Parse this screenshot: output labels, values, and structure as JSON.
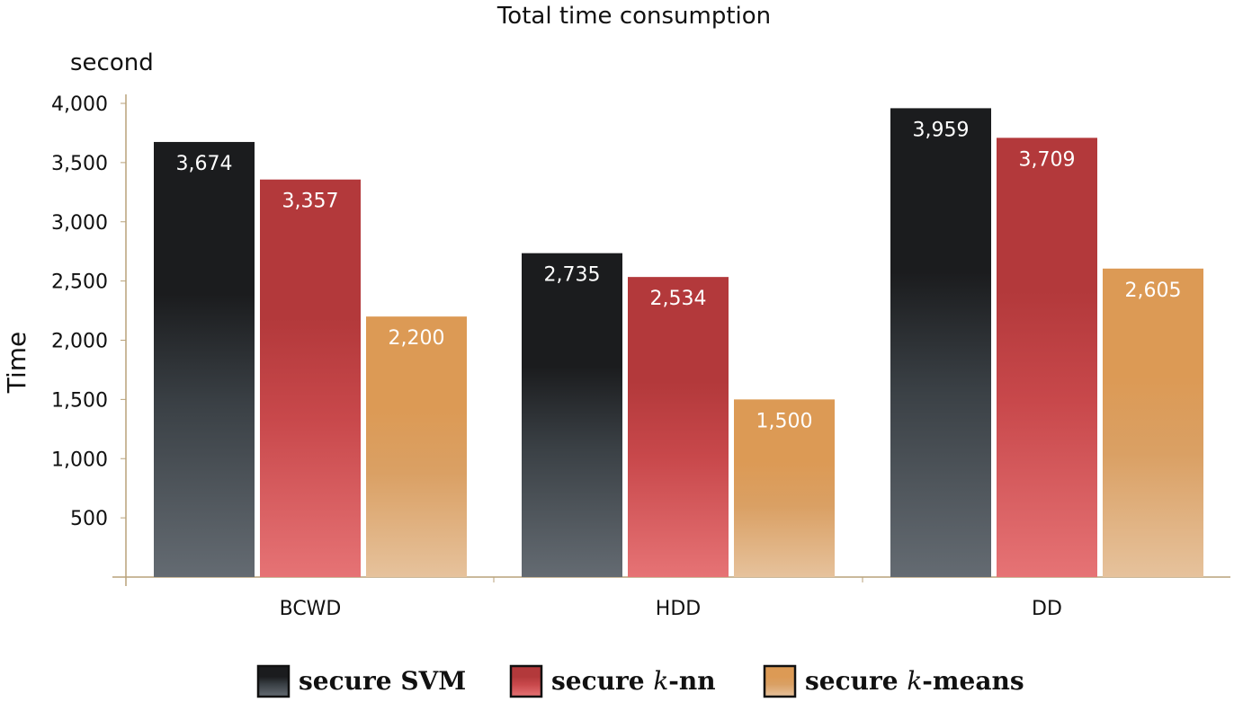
{
  "chart_data": {
    "type": "bar",
    "title": "Total time consumption",
    "unit_label": "second",
    "ylabel": "Time",
    "xlabel": "",
    "categories": [
      "BCWD",
      "HDD",
      "DD"
    ],
    "ylim": [
      0,
      4000
    ],
    "yticks": [
      500,
      1000,
      1500,
      2000,
      2500,
      3000,
      3500,
      4000
    ],
    "ytick_labels": [
      "500",
      "1,000",
      "1,500",
      "2,000",
      "2,500",
      "3,000",
      "3,500",
      "4,000"
    ],
    "grid": false,
    "legend_position": "bottom",
    "series": [
      {
        "name_prefix": "secure ",
        "name_main": "SVM",
        "name_main_italic": false,
        "name_suffix": "",
        "values": [
          3674,
          2735,
          3959
        ],
        "labels": [
          "3,674",
          "2,735",
          "3,959"
        ],
        "colors": {
          "top": "#1b1c1e",
          "mid": "#3a4045",
          "bottom": "#646b72"
        }
      },
      {
        "name_prefix": "secure ",
        "name_main": "k",
        "name_main_italic": true,
        "name_suffix": "-nn",
        "values": [
          3357,
          2534,
          3709
        ],
        "labels": [
          "3,357",
          "2,534",
          "3,709"
        ],
        "colors": {
          "top": "#b3393b",
          "mid": "#c8484b",
          "bottom": "#e67375"
        }
      },
      {
        "name_prefix": "secure ",
        "name_main": "k",
        "name_main_italic": true,
        "name_suffix": "-means",
        "values": [
          2200,
          1500,
          2605
        ],
        "labels": [
          "2,200",
          "1,500",
          "2,605"
        ],
        "colors": {
          "top": "#dc9a55",
          "mid": "#daa064",
          "bottom": "#e6c29c"
        }
      }
    ]
  }
}
